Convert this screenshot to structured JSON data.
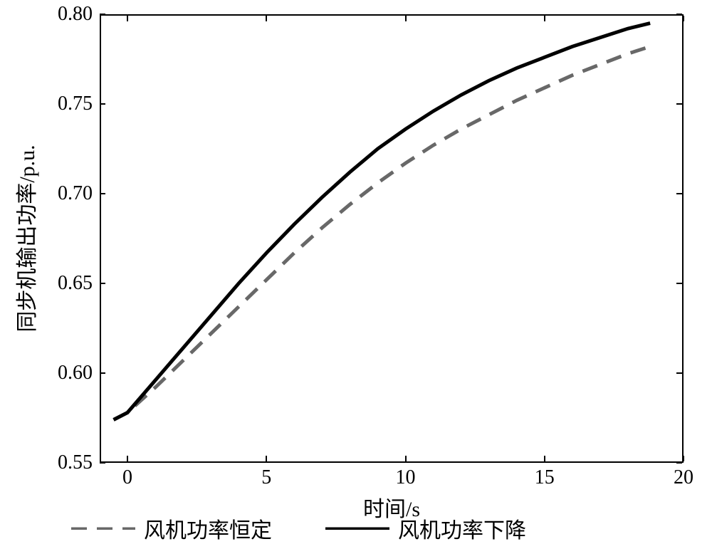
{
  "chart": {
    "type": "line",
    "background_color": "#ffffff",
    "border_color": "#000000",
    "border_width": 2,
    "xlabel": "时间/s",
    "ylabel": "同步机输出功率/p.u.",
    "label_fontsize": 30,
    "tick_fontsize": 28,
    "xlim": [
      -1,
      20
    ],
    "ylim": [
      0.55,
      0.8
    ],
    "xticks": [
      0,
      5,
      10,
      15,
      20
    ],
    "yticks": [
      0.55,
      0.6,
      0.65,
      0.7,
      0.75,
      0.8
    ],
    "ytick_labels": [
      "0.55",
      "0.60",
      "0.65",
      "0.70",
      "0.75",
      "0.80"
    ],
    "series": [
      {
        "name": "dashed",
        "legend_label": "风机功率恒定",
        "color": "#686868",
        "line_width": 5,
        "dash": "22,14",
        "x": [
          -0.5,
          0,
          1,
          2,
          3,
          4,
          5,
          6,
          7,
          8,
          9,
          10,
          11,
          12,
          13,
          14,
          15,
          16,
          17,
          18,
          18.8
        ],
        "y": [
          0.574,
          0.578,
          0.592,
          0.607,
          0.622,
          0.637,
          0.652,
          0.667,
          0.681,
          0.694,
          0.706,
          0.717,
          0.727,
          0.736,
          0.744,
          0.752,
          0.759,
          0.766,
          0.772,
          0.778,
          0.782
        ]
      },
      {
        "name": "solid",
        "legend_label": "风机功率下降",
        "color": "#000000",
        "line_width": 5,
        "dash": "none",
        "x": [
          -0.5,
          0,
          1,
          2,
          3,
          4,
          5,
          6,
          7,
          8,
          9,
          10,
          11,
          12,
          13,
          14,
          15,
          16,
          17,
          18,
          18.8
        ],
        "y": [
          0.574,
          0.578,
          0.596,
          0.614,
          0.632,
          0.65,
          0.667,
          0.683,
          0.698,
          0.712,
          0.725,
          0.736,
          0.746,
          0.755,
          0.763,
          0.77,
          0.776,
          0.782,
          0.787,
          0.792,
          0.795
        ]
      }
    ],
    "legend": {
      "position": "bottom",
      "items": [
        "风机功率恒定",
        "风机功率下降"
      ]
    }
  }
}
